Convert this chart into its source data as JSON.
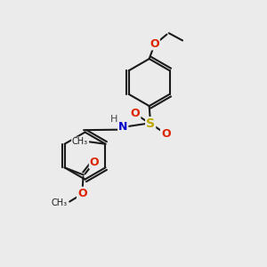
{
  "bg_color": "#ebebeb",
  "bond_color": "#1a1a1a",
  "line_width": 1.5,
  "atom_colors": {
    "O": "#dd2200",
    "N": "#0000cc",
    "S": "#bbaa00",
    "C": "#1a1a1a",
    "H": "#444444"
  },
  "font_size": 9,
  "fig_size": [
    3.0,
    3.0
  ],
  "dpi": 100
}
